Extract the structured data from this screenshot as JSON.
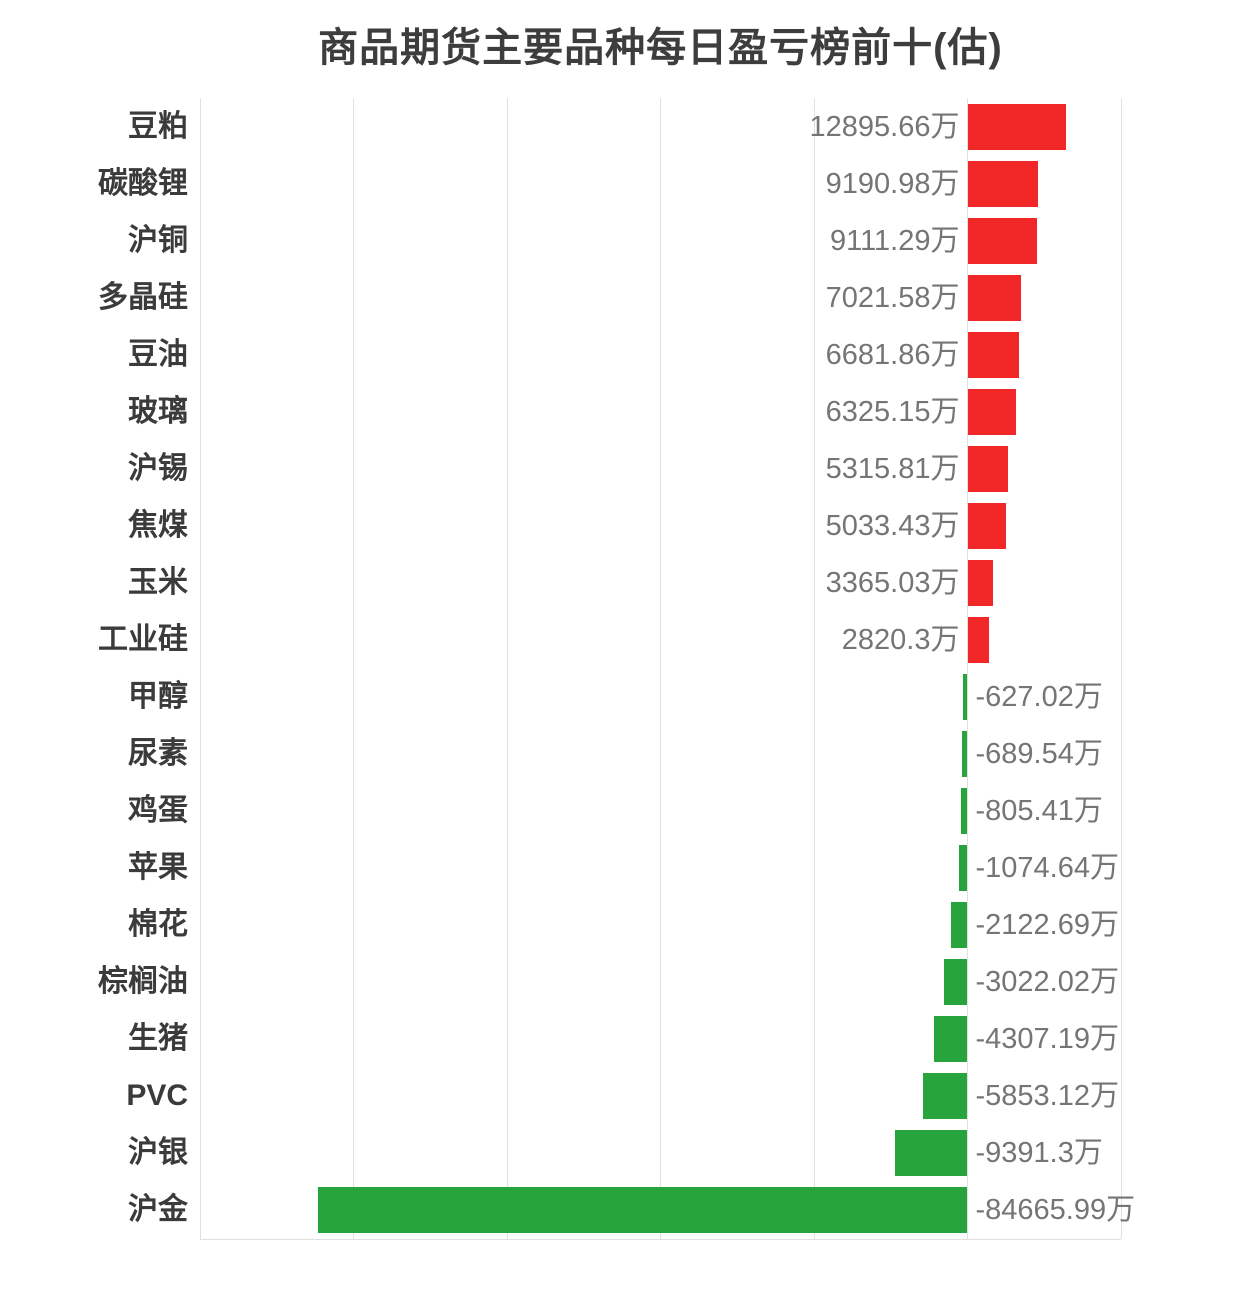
{
  "title": "商品期货主要品种每日盈亏榜前十(估)",
  "colors": {
    "positive_bar": "#f12626",
    "negative_bar": "#27a53c",
    "gridline": "#e0e0e0",
    "title_text": "#3d3d3d",
    "category_text": "#3b3b3b",
    "value_text": "#757575",
    "background": "#ffffff"
  },
  "chart_data": {
    "type": "bar",
    "orientation": "horizontal",
    "title": "商品期货主要品种每日盈亏榜前十(估)",
    "unit": "万",
    "categories": [
      "豆粕",
      "碳酸锂",
      "沪铜",
      "多晶硅",
      "豆油",
      "玻璃",
      "沪锡",
      "焦煤",
      "玉米",
      "工业硅",
      "甲醇",
      "尿素",
      "鸡蛋",
      "苹果",
      "棉花",
      "棕榈油",
      "生猪",
      "PVC",
      "沪银",
      "沪金"
    ],
    "values": [
      12895.66,
      9190.98,
      9111.29,
      7021.58,
      6681.86,
      6325.15,
      5315.81,
      5033.43,
      3365.03,
      2820.3,
      -627.02,
      -689.54,
      -805.41,
      -1074.64,
      -2122.69,
      -3022.02,
      -4307.19,
      -5853.12,
      -9391.3,
      -84665.99
    ],
    "value_labels": [
      "12895.66万",
      "9190.98万",
      "9111.29万",
      "7021.58万",
      "6681.86万",
      "6325.15万",
      "5315.81万",
      "5033.43万",
      "3365.03万",
      "2820.3万",
      "-627.02万",
      "-689.54万",
      "-805.41万",
      "-1074.64万",
      "-2122.69万",
      "-3022.02万",
      "-4307.19万",
      "-5853.12万",
      "-9391.3万",
      "-84665.99万"
    ],
    "xlim": [
      -100000,
      20000
    ],
    "grid_step": 20000,
    "grid": true,
    "legend": "none",
    "color_rule": "positive=red, negative=green",
    "label_rule": "positive values labeled left of zero baseline, negative values labeled right of zero baseline"
  }
}
